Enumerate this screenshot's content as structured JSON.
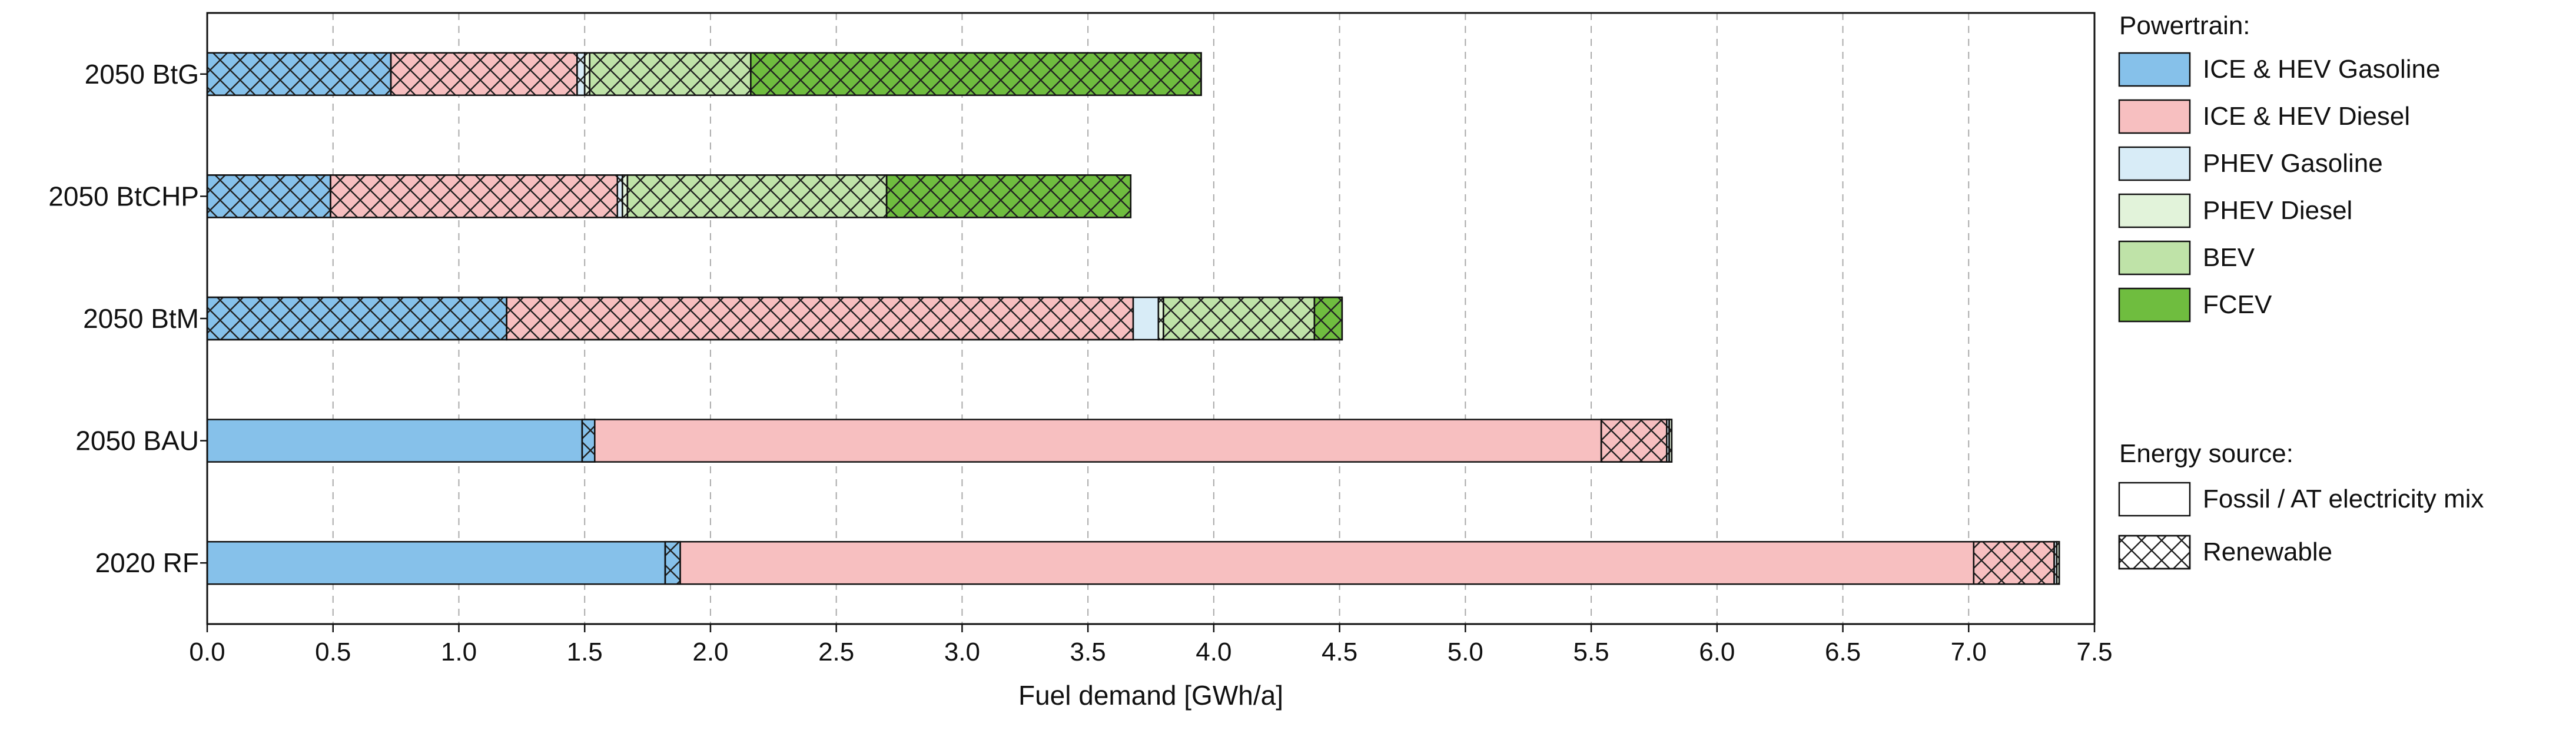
{
  "chart_data": {
    "type": "bar",
    "orientation": "horizontal",
    "stacked": true,
    "categories": [
      "2050 BtG",
      "2050 BtCHP",
      "2050 BtM",
      "2050 BAU",
      "2020 RF"
    ],
    "xlabel": "Fuel demand [GWh/a]",
    "xlim": [
      0,
      7.5
    ],
    "x_ticks": [
      "0.0",
      "0.5",
      "1.0",
      "1.5",
      "2.0",
      "2.5",
      "3.0",
      "3.5",
      "4.0",
      "4.5",
      "5.0",
      "5.5",
      "6.0",
      "6.5",
      "7.0",
      "7.5"
    ],
    "grid": "vertical dashed",
    "legend_placement": "right",
    "series": [
      {
        "name": "ICE & HEV Gasoline",
        "color": "#86c1ea",
        "segments": [
          [
            {
              "value": 0.73,
              "source": "renewable"
            }
          ],
          [
            {
              "value": 0.49,
              "source": "renewable"
            }
          ],
          [
            {
              "value": 1.19,
              "source": "renewable"
            }
          ],
          [
            {
              "value": 1.49,
              "source": "fossil"
            },
            {
              "value": 0.05,
              "source": "renewable"
            }
          ],
          [
            {
              "value": 1.82,
              "source": "fossil"
            },
            {
              "value": 0.06,
              "source": "renewable"
            }
          ]
        ]
      },
      {
        "name": "ICE & HEV Diesel",
        "color": "#f7bfc0",
        "segments": [
          [
            {
              "value": 0.74,
              "source": "renewable"
            }
          ],
          [
            {
              "value": 1.14,
              "source": "renewable"
            }
          ],
          [
            {
              "value": 2.49,
              "source": "renewable"
            }
          ],
          [
            {
              "value": 4.0,
              "source": "fossil"
            },
            {
              "value": 0.26,
              "source": "renewable"
            }
          ],
          [
            {
              "value": 5.14,
              "source": "fossil"
            },
            {
              "value": 0.32,
              "source": "renewable"
            }
          ]
        ]
      },
      {
        "name": "PHEV Gasoline",
        "color": "#d8ecf7",
        "segments": [
          [
            {
              "value": 0.03,
              "source": "renewable"
            }
          ],
          [
            {
              "value": 0.02,
              "source": "renewable"
            }
          ],
          [
            {
              "value": 0.1,
              "source": "fossil"
            }
          ],
          [
            {
              "value": 0.01,
              "source": "renewable"
            }
          ],
          [
            {
              "value": 0.01,
              "source": "renewable"
            }
          ]
        ]
      },
      {
        "name": "PHEV Diesel",
        "color": "#e2f3da",
        "segments": [
          [
            {
              "value": 0.02,
              "source": "renewable"
            }
          ],
          [
            {
              "value": 0.02,
              "source": "renewable"
            }
          ],
          [
            {
              "value": 0.02,
              "source": "renewable"
            }
          ],
          [
            {
              "value": 0.01,
              "source": "renewable"
            }
          ],
          [
            {
              "value": 0.01,
              "source": "renewable"
            }
          ]
        ]
      },
      {
        "name": "BEV",
        "color": "#bfe3a8",
        "segments": [
          [
            {
              "value": 0.64,
              "source": "renewable"
            }
          ],
          [
            {
              "value": 1.03,
              "source": "renewable"
            }
          ],
          [
            {
              "value": 0.6,
              "source": "renewable"
            }
          ],
          [
            {
              "value": 0,
              "source": "renewable"
            }
          ],
          [
            {
              "value": 0,
              "source": "renewable"
            }
          ]
        ]
      },
      {
        "name": "FCEV",
        "color": "#6fbd3f",
        "segments": [
          [
            {
              "value": 1.79,
              "source": "renewable"
            }
          ],
          [
            {
              "value": 0.97,
              "source": "renewable"
            }
          ],
          [
            {
              "value": 0.11,
              "source": "renewable"
            }
          ],
          [
            {
              "value": 0,
              "source": "renewable"
            }
          ],
          [
            {
              "value": 0,
              "source": "renewable"
            }
          ]
        ]
      }
    ],
    "legend_powertrain_title": "Powertrain:",
    "legend_energy_title": "Energy source:",
    "energy_sources": [
      {
        "key": "fossil",
        "name": "Fossil / AT electricity mix"
      },
      {
        "key": "renewable",
        "name": "Renewable"
      }
    ]
  }
}
